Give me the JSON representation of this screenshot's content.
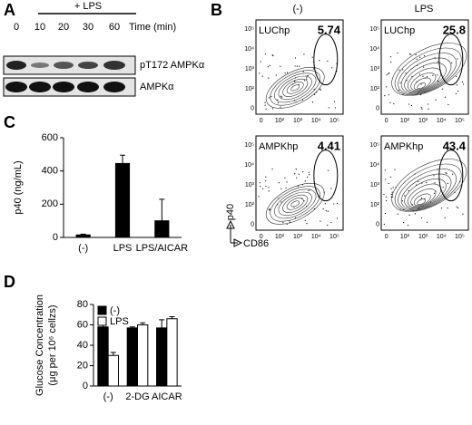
{
  "panel_a": {
    "label": "A",
    "treatment": "+ LPS",
    "times": [
      0,
      10,
      20,
      30,
      60
    ],
    "time_label": "Time (min)",
    "blots": [
      "pT172 AMPKα",
      "AMPKα"
    ]
  },
  "panel_b": {
    "label": "B",
    "conditions": [
      "(-)",
      "LPS"
    ],
    "plots": [
      {
        "name": "LUChp",
        "value": 5.74
      },
      {
        "name": "LUChp",
        "value": 25.8
      },
      {
        "name": "AMPKhp",
        "value": 4.41
      },
      {
        "name": "AMPKhp",
        "value": 43.4
      }
    ],
    "ticks": [
      "0",
      "10²",
      "10³",
      "10⁴",
      "10⁵"
    ],
    "ylabel": "p40",
    "xlabel": "CD86"
  },
  "chart_data": [
    {
      "type": "bar",
      "label": "C",
      "ylabel": "p40 (ng/mL)",
      "categories": [
        "(-)",
        "LPS",
        "LPS/AICAR"
      ],
      "values": [
        15,
        445,
        100
      ],
      "errors": [
        5,
        50,
        130
      ],
      "color": "#000000",
      "ylim": [
        0,
        600
      ],
      "yticks": [
        0,
        200,
        400,
        600
      ]
    },
    {
      "type": "grouped_bar",
      "label": "D",
      "ylabel": [
        "Glucose Concentration",
        "(μg per 10⁶ cellzs)"
      ],
      "categories": [
        "(-)",
        "2-DG",
        "AICAR"
      ],
      "series": [
        {
          "name": "(-)",
          "color": "#000000",
          "values": [
            58,
            57,
            57
          ],
          "errors": [
            3,
            1,
            8
          ]
        },
        {
          "name": "LPS",
          "color": "#ffffff",
          "values": [
            30,
            60,
            66
          ],
          "errors": [
            3,
            2,
            2
          ]
        }
      ],
      "ylim": [
        0,
        80
      ],
      "yticks": [
        0,
        20,
        40,
        60,
        80
      ],
      "legend": "upper left"
    }
  ]
}
